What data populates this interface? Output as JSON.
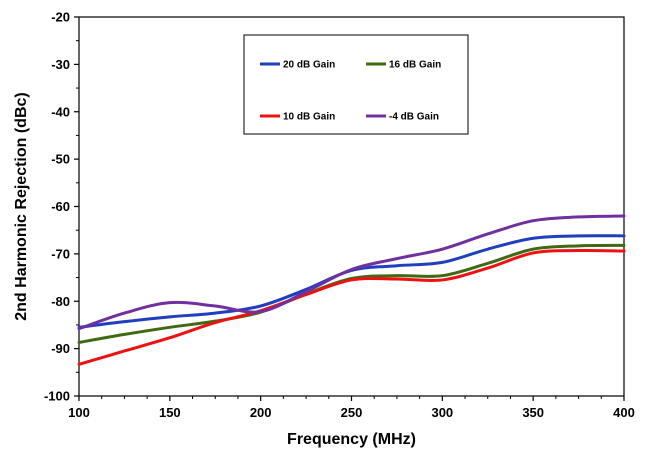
{
  "chart_data": {
    "type": "line",
    "title": "",
    "xlabel": "Frequency (MHz)",
    "ylabel": "2nd Harmonic Rejection (dBc)",
    "xlim": [
      100,
      400
    ],
    "ylim": [
      -100,
      -20
    ],
    "xticks": [
      100,
      150,
      200,
      250,
      300,
      350,
      400
    ],
    "yticks": [
      -100,
      -90,
      -80,
      -70,
      -60,
      -50,
      -40,
      -30,
      -20
    ],
    "x_minor_step": 12.5,
    "y_minor_step": 5,
    "grid": false,
    "legend_position": "top-center",
    "series": [
      {
        "name": "20 dB Gain",
        "color": "#1f3fbf",
        "x": [
          100,
          125,
          150,
          175,
          200,
          225,
          250,
          275,
          300,
          325,
          350,
          375,
          400
        ],
        "y": [
          -85.5,
          -84.3,
          -83.3,
          -82.5,
          -81.0,
          -77.5,
          -73.5,
          -72.5,
          -71.8,
          -69.0,
          -66.7,
          -66.2,
          -66.2
        ]
      },
      {
        "name": "16 dB Gain",
        "color": "#3f6a12",
        "x": [
          100,
          125,
          150,
          175,
          200,
          225,
          250,
          275,
          300,
          325,
          350,
          375,
          400
        ],
        "y": [
          -88.7,
          -87.0,
          -85.5,
          -84.2,
          -82.3,
          -78.5,
          -75.2,
          -74.6,
          -74.6,
          -72.0,
          -69.0,
          -68.3,
          -68.2
        ]
      },
      {
        "name": "10 dB Gain",
        "color": "#ee1111",
        "x": [
          100,
          125,
          150,
          175,
          200,
          225,
          250,
          275,
          300,
          325,
          350,
          375,
          400
        ],
        "y": [
          -93.3,
          -90.5,
          -87.7,
          -84.5,
          -82.0,
          -78.6,
          -75.5,
          -75.3,
          -75.5,
          -73.0,
          -69.8,
          -69.3,
          -69.4
        ]
      },
      {
        "name": "-4 dB Gain",
        "color": "#7030a0",
        "x": [
          100,
          125,
          150,
          175,
          200,
          225,
          250,
          275,
          300,
          325,
          350,
          375,
          400
        ],
        "y": [
          -85.8,
          -82.5,
          -80.3,
          -81.0,
          -82.2,
          -78.0,
          -73.3,
          -71.0,
          -69.0,
          -65.8,
          -63.0,
          -62.2,
          -62.0
        ]
      }
    ]
  }
}
